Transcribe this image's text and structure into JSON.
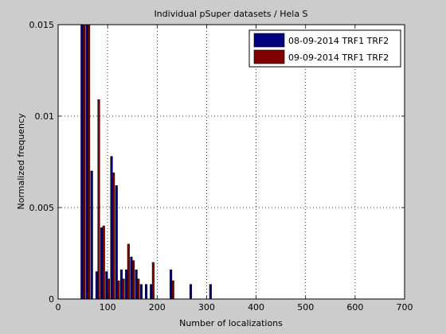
{
  "chart_data": {
    "type": "bar",
    "title": "Individual pSuper datasets / Hela S",
    "xlabel": "Number of localizations",
    "ylabel": "Normalized frequency",
    "xlim": [
      0,
      700
    ],
    "ylim": [
      0,
      0.015
    ],
    "x_ticks": [
      0,
      100,
      200,
      300,
      400,
      500,
      600,
      700
    ],
    "y_ticks": [
      0,
      0.005,
      0.01,
      0.015
    ],
    "x_tick_labels": [
      "0",
      "100",
      "200",
      "300",
      "400",
      "500",
      "600",
      "700"
    ],
    "y_tick_labels": [
      "0",
      "0.005",
      "0.01",
      "0.015"
    ],
    "grid": true,
    "legend_position": "top-right",
    "series": [
      {
        "name": "08-09-2014 TRF1 TRF2",
        "color": "#00007f",
        "x": [
          50,
          60,
          70,
          80,
          90,
          100,
          110,
          120,
          130,
          140,
          150,
          160,
          170,
          180,
          190,
          230,
          270,
          310
        ],
        "values": [
          0.0156,
          0.0156,
          0.007,
          0.0015,
          0.0039,
          0.0015,
          0.0078,
          0.0062,
          0.0016,
          0.0016,
          0.0023,
          0.0016,
          0.0008,
          0.0008,
          0.0008,
          0.0016,
          0.0008,
          0.0008
        ]
      },
      {
        "name": "09-09-2014 TRF1 TRF2",
        "color": "#7f0000",
        "x": [
          50,
          60,
          70,
          80,
          90,
          100,
          110,
          120,
          130,
          140,
          150,
          160,
          170,
          180,
          190,
          230,
          270,
          310
        ],
        "values": [
          0.0156,
          0.0156,
          0.0,
          0.0109,
          0.004,
          0.0011,
          0.0069,
          0.001,
          0.0011,
          0.003,
          0.0021,
          0.0011,
          0.0,
          0.0,
          0.002,
          0.001,
          0.0,
          0.0
        ]
      }
    ]
  }
}
